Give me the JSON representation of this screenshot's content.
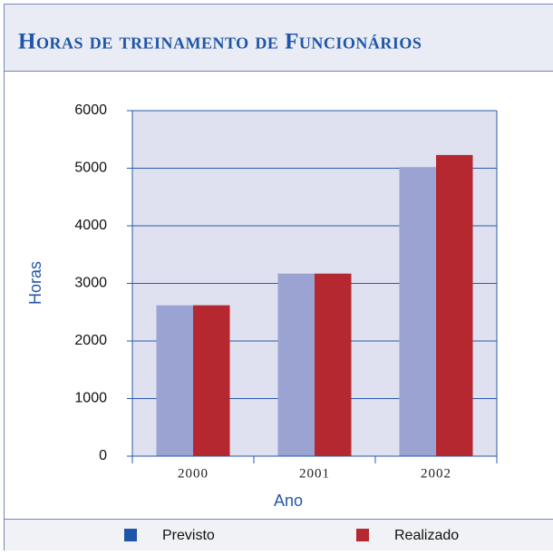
{
  "chart_data": {
    "type": "bar",
    "title": "Horas de treinamento de Funcionários",
    "categories": [
      "2000",
      "2001",
      "2002"
    ],
    "series": [
      {
        "name": "Previsto",
        "color": "#9aa3d1",
        "legend_color": "#1f55a8",
        "values": [
          2620,
          3170,
          5020
        ]
      },
      {
        "name": "Realizado",
        "color": "#b5282f",
        "legend_color": "#b5282f",
        "values": [
          2620,
          3170,
          5230
        ]
      }
    ],
    "x_label": "Ano",
    "y_label": "Horas",
    "ylim": [
      0,
      6000
    ],
    "yticks": [
      0,
      1000,
      2000,
      3000,
      4000,
      5000,
      6000
    ],
    "grid": true
  }
}
